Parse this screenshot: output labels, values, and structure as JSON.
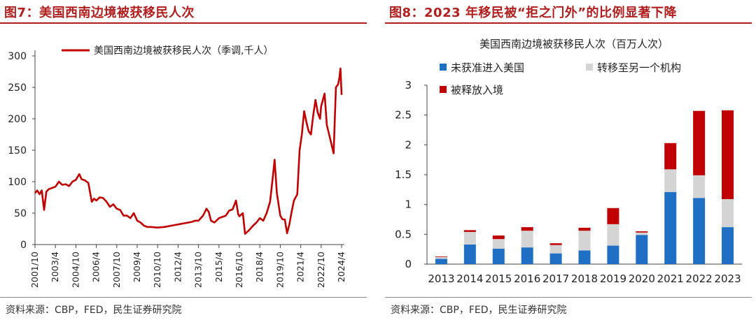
{
  "left": {
    "title": "图7：美国西南边境被获移民人次",
    "source": "资料来源：CBP，FED，民生证券研究院"
  },
  "right": {
    "title": "图8：2023 年移民被“拒之门外”的比例显著下降",
    "source": "资料来源：CBP，FED，民生证券研究院"
  },
  "chart_data": [
    {
      "type": "line",
      "title": "",
      "xlabel": "",
      "ylabel": "",
      "ylim": [
        0,
        300
      ],
      "yticks": [
        0,
        50,
        100,
        150,
        200,
        250,
        300
      ],
      "xticks": [
        "2001/10",
        "2003/4",
        "2004/10",
        "2006/4",
        "2007/10",
        "2009/4",
        "2010/10",
        "2012/4",
        "2013/10",
        "2015/4",
        "2016/10",
        "2018/4",
        "2019/10",
        "2021/4",
        "2022/10",
        "2024/4"
      ],
      "legend_position": "top",
      "series": [
        {
          "name": "美国西南边境被获移民人次（季调,千人）",
          "color": "#c00000",
          "points": [
            [
              "2001/10",
              82
            ],
            [
              "2001/12",
              86
            ],
            [
              "2002/2",
              80
            ],
            [
              "2002/4",
              86
            ],
            [
              "2002/6",
              55
            ],
            [
              "2002/8",
              84
            ],
            [
              "2002/10",
              88
            ],
            [
              "2003/1",
              90
            ],
            [
              "2003/4",
              92
            ],
            [
              "2003/7",
              100
            ],
            [
              "2003/10",
              95
            ],
            [
              "2004/1",
              96
            ],
            [
              "2004/4",
              93
            ],
            [
              "2004/7",
              100
            ],
            [
              "2004/10",
              103
            ],
            [
              "2005/1",
              112
            ],
            [
              "2005/3",
              104
            ],
            [
              "2005/6",
              102
            ],
            [
              "2005/9",
              98
            ],
            [
              "2005/12",
              68
            ],
            [
              "2006/2",
              73
            ],
            [
              "2006/4",
              70
            ],
            [
              "2006/7",
              75
            ],
            [
              "2006/10",
              74
            ],
            [
              "2007/1",
              68
            ],
            [
              "2007/4",
              60
            ],
            [
              "2007/7",
              64
            ],
            [
              "2007/10",
              57
            ],
            [
              "2008/1",
              55
            ],
            [
              "2008/4",
              46
            ],
            [
              "2008/7",
              46
            ],
            [
              "2008/10",
              42
            ],
            [
              "2009/1",
              50
            ],
            [
              "2009/4",
              38
            ],
            [
              "2009/7",
              35
            ],
            [
              "2009/10",
              30
            ],
            [
              "2010/1",
              28
            ],
            [
              "2010/4",
              28
            ],
            [
              "2010/10",
              27
            ],
            [
              "2011/4",
              28
            ],
            [
              "2011/10",
              30
            ],
            [
              "2012/4",
              32
            ],
            [
              "2012/10",
              34
            ],
            [
              "2013/4",
              36
            ],
            [
              "2013/7",
              38
            ],
            [
              "2013/10",
              38
            ],
            [
              "2014/2",
              46
            ],
            [
              "2014/5",
              57
            ],
            [
              "2014/7",
              52
            ],
            [
              "2014/9",
              38
            ],
            [
              "2014/12",
              35
            ],
            [
              "2015/4",
              42
            ],
            [
              "2015/10",
              46
            ],
            [
              "2016/1",
              54
            ],
            [
              "2016/4",
              56
            ],
            [
              "2016/7",
              70
            ],
            [
              "2016/9",
              48
            ],
            [
              "2016/10",
              45
            ],
            [
              "2017/1",
              50
            ],
            [
              "2017/3",
              17
            ],
            [
              "2017/6",
              22
            ],
            [
              "2017/10",
              30
            ],
            [
              "2018/1",
              35
            ],
            [
              "2018/4",
              42
            ],
            [
              "2018/7",
              38
            ],
            [
              "2018/10",
              50
            ],
            [
              "2019/1",
              68
            ],
            [
              "2019/3",
              100
            ],
            [
              "2019/5",
              135
            ],
            [
              "2019/7",
              82
            ],
            [
              "2019/10",
              46
            ],
            [
              "2019/12",
              40
            ],
            [
              "2020/2",
              40
            ],
            [
              "2020/4",
              18
            ],
            [
              "2020/6",
              32
            ],
            [
              "2020/8",
              52
            ],
            [
              "2020/10",
              70
            ],
            [
              "2021/1",
              80
            ],
            [
              "2021/3",
              150
            ],
            [
              "2021/5",
              175
            ],
            [
              "2021/7",
              212
            ],
            [
              "2021/9",
              195
            ],
            [
              "2021/11",
              180
            ],
            [
              "2022/1",
              175
            ],
            [
              "2022/3",
              205
            ],
            [
              "2022/5",
              230
            ],
            [
              "2022/7",
              210
            ],
            [
              "2022/9",
              200
            ],
            [
              "2022/10",
              220
            ],
            [
              "2023/1",
              240
            ],
            [
              "2023/3",
              190
            ],
            [
              "2023/5",
              175
            ],
            [
              "2023/7",
              160
            ],
            [
              "2023/9",
              145
            ],
            [
              "2023/11",
              250
            ],
            [
              "2024/1",
              255
            ],
            [
              "2024/2",
              265
            ],
            [
              "2024/3",
              280
            ],
            [
              "2024/4",
              238
            ]
          ]
        }
      ]
    },
    {
      "type": "bar",
      "stacked": true,
      "title": "美国西南边境被获移民人次（百万人次）",
      "xlabel": "",
      "ylabel": "",
      "ylim": [
        0,
        3
      ],
      "yticks": [
        0,
        0.5,
        1,
        1.5,
        2,
        2.5,
        3
      ],
      "legend_position": "top-left",
      "categories": [
        "2013",
        "2014",
        "2015",
        "2016",
        "2017",
        "2018",
        "2019",
        "2020",
        "2021",
        "2022",
        "2023"
      ],
      "series": [
        {
          "name": "未获准进入美国",
          "color": "#1f6fc4",
          "values": [
            0.09,
            0.33,
            0.26,
            0.28,
            0.18,
            0.23,
            0.31,
            0.49,
            1.21,
            1.11,
            0.62
          ]
        },
        {
          "name": "转移至另一个机构",
          "color": "#d4d4d4",
          "values": [
            0.03,
            0.21,
            0.16,
            0.28,
            0.14,
            0.33,
            0.36,
            0.04,
            0.38,
            0.38,
            0.47
          ]
        },
        {
          "name": "被释放入境",
          "color": "#c00000",
          "values": [
            0.01,
            0.03,
            0.06,
            0.06,
            0.03,
            0.05,
            0.27,
            0.02,
            0.44,
            1.08,
            1.49
          ]
        }
      ]
    }
  ]
}
